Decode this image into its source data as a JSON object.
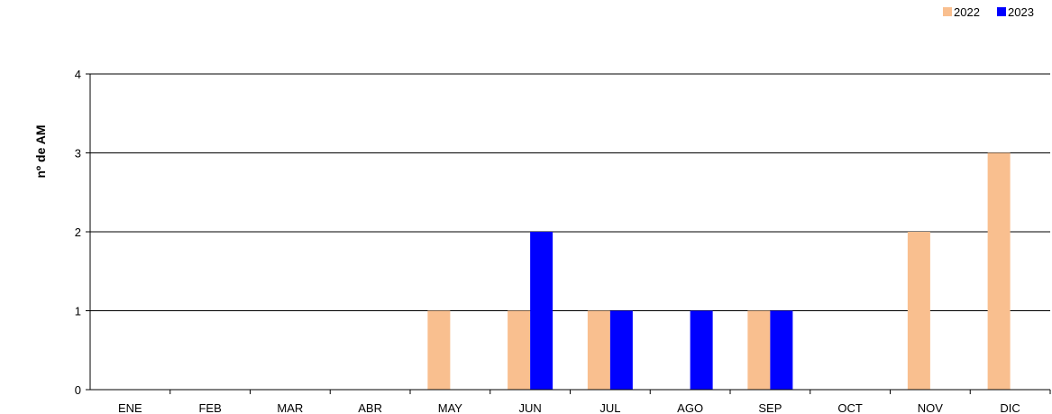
{
  "chart_data": {
    "type": "bar",
    "categories": [
      "ENE",
      "FEB",
      "MAR",
      "ABR",
      "MAY",
      "JUN",
      "JUL",
      "AGO",
      "SEP",
      "OCT",
      "NOV",
      "DIC"
    ],
    "series": [
      {
        "name": "2022",
        "color": "#F9BF8F",
        "values": [
          0,
          0,
          0,
          0,
          1,
          1,
          1,
          0,
          1,
          0,
          2,
          3
        ]
      },
      {
        "name": "2023",
        "color": "#0000FF",
        "values": [
          0,
          0,
          0,
          0,
          0,
          2,
          1,
          1,
          1,
          0,
          0,
          0
        ]
      }
    ],
    "title": "",
    "xlabel": "",
    "ylabel": "nº de AM",
    "ylim": [
      0,
      4
    ],
    "yticks": [
      "0",
      "1",
      "2",
      "3",
      "4"
    ],
    "grid": true,
    "legend": "top-right"
  }
}
